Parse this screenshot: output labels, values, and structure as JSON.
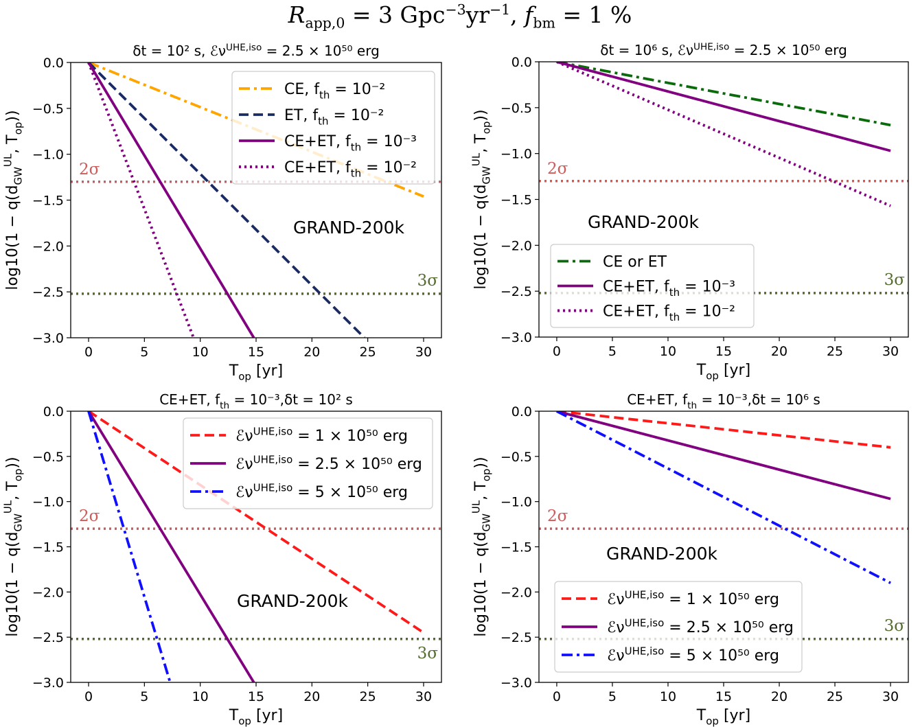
{
  "suptitle": "R_app,0 = 3 Gpc⁻³yr⁻¹, f_bm = 1 %",
  "colors": {
    "orange": "#ffa500",
    "navy": "#1a2a63",
    "purple": "#800080",
    "green": "#0a6b0a",
    "red": "#ff1a1a",
    "blue": "#1010ff",
    "sigma2": "#cd5c5c",
    "sigma3": "#556b2f"
  },
  "chart_data": [
    {
      "type": "line",
      "title": "δt = 10² s, ℰν^UHE,iso = 2.5 × 10⁵⁰ erg",
      "xlabel": "T_op [yr]",
      "ylabel": "log10(1 − q(d_GW^UL, T_op))",
      "xlim": [
        -1.6,
        31.6
      ],
      "ylim": [
        -3.0,
        0.0
      ],
      "xticks": [
        0,
        5,
        10,
        15,
        20,
        25,
        30
      ],
      "yticks": [
        0.0,
        -0.5,
        -1.0,
        -1.5,
        -2.0,
        -2.5,
        -3.0
      ],
      "annotation": "GRAND-200k",
      "legend_position": "top-right",
      "sigma_lines": [
        {
          "label": "2σ",
          "y": -1.3,
          "label_side": "left-above"
        },
        {
          "label": "3σ",
          "y": -2.52,
          "label_side": "right-above"
        }
      ],
      "series": [
        {
          "name": "CE, f_th = 10⁻²",
          "style": "dashdot",
          "color": "orange",
          "x": [
            0,
            30
          ],
          "y": [
            0,
            -1.46
          ]
        },
        {
          "name": "ET, f_th = 10⁻²",
          "style": "dashed",
          "color": "navy",
          "x": [
            0,
            24.7
          ],
          "y": [
            0,
            -3.0
          ]
        },
        {
          "name": "CE+ET, f_th = 10⁻³",
          "style": "solid",
          "color": "purple",
          "x": [
            0,
            14.8
          ],
          "y": [
            0,
            -3.0
          ]
        },
        {
          "name": "CE+ET, f_th = 10⁻²",
          "style": "dotted",
          "color": "purple",
          "x": [
            0,
            9.4
          ],
          "y": [
            0,
            -3.0
          ]
        }
      ]
    },
    {
      "type": "line",
      "title": "δt = 10⁶ s, ℰν^UHE,iso = 2.5 × 10⁵⁰ erg",
      "xlabel": "T_op [yr]",
      "ylabel": "log10(1 − q(d_GW^UL, T_op))",
      "xlim": [
        -1.6,
        31.6
      ],
      "ylim": [
        -3.0,
        0.0
      ],
      "xticks": [
        0,
        5,
        10,
        15,
        20,
        25,
        30
      ],
      "yticks": [
        0.0,
        -0.5,
        -1.0,
        -1.5,
        -2.0,
        -2.5,
        -3.0
      ],
      "annotation": "GRAND-200k",
      "legend_position": "bottom-left",
      "sigma_lines": [
        {
          "label": "2σ",
          "y": -1.3,
          "label_side": "left-above"
        },
        {
          "label": "3σ",
          "y": -2.52,
          "label_side": "right-above"
        }
      ],
      "series": [
        {
          "name": "CE or ET",
          "style": "dashdot",
          "color": "green",
          "x": [
            0,
            30
          ],
          "y": [
            0,
            -0.69
          ]
        },
        {
          "name": "CE+ET, f_th = 10⁻³",
          "style": "solid",
          "color": "purple",
          "x": [
            0,
            30
          ],
          "y": [
            0,
            -0.97
          ]
        },
        {
          "name": "CE+ET, f_th = 10⁻²",
          "style": "dotted",
          "color": "purple",
          "x": [
            0,
            30
          ],
          "y": [
            0,
            -1.57
          ]
        }
      ]
    },
    {
      "type": "line",
      "title": "CE+ET, f_th = 10⁻³,δt = 10² s",
      "xlabel": "T_op [yr]",
      "ylabel": "log10(1 − q(d_GW^UL, T_op))",
      "xlim": [
        -1.6,
        31.6
      ],
      "ylim": [
        -3.0,
        0.0
      ],
      "xticks": [
        0,
        5,
        10,
        15,
        20,
        25,
        30
      ],
      "yticks": [
        0.0,
        -0.5,
        -1.0,
        -1.5,
        -2.0,
        -2.5,
        -3.0
      ],
      "annotation": "GRAND-200k",
      "legend_position": "top-right",
      "sigma_lines": [
        {
          "label": "2σ",
          "y": -1.3,
          "label_side": "left-above"
        },
        {
          "label": "3σ",
          "y": -2.52,
          "label_side": "right-below"
        }
      ],
      "series": [
        {
          "name": "ℰν^UHE,iso = 1 × 10⁵⁰ erg",
          "style": "dashed",
          "color": "red",
          "x": [
            0,
            30
          ],
          "y": [
            0,
            -2.45
          ]
        },
        {
          "name": "ℰν^UHE,iso = 2.5 × 10⁵⁰ erg",
          "style": "solid",
          "color": "purple",
          "x": [
            0,
            14.8
          ],
          "y": [
            0,
            -3.0
          ]
        },
        {
          "name": "ℰν^UHE,iso = 5 × 10⁵⁰ erg",
          "style": "dashdot",
          "color": "blue",
          "x": [
            0,
            7.3
          ],
          "y": [
            0,
            -3.0
          ]
        }
      ]
    },
    {
      "type": "line",
      "title": "CE+ET, f_th = 10⁻³,δt = 10⁶ s",
      "xlabel": "T_op [yr]",
      "ylabel": "log10(1 − q(d_GW^UL, T_op))",
      "xlim": [
        -1.6,
        31.6
      ],
      "ylim": [
        -3.0,
        0.0
      ],
      "xticks": [
        0,
        5,
        10,
        15,
        20,
        25,
        30
      ],
      "yticks": [
        0.0,
        -0.5,
        -1.0,
        -1.5,
        -2.0,
        -2.5,
        -3.0
      ],
      "annotation": "GRAND-200k",
      "legend_position": "bottom-left",
      "sigma_lines": [
        {
          "label": "2σ",
          "y": -1.3,
          "label_side": "left-above"
        },
        {
          "label": "3σ",
          "y": -2.52,
          "label_side": "right-above"
        }
      ],
      "series": [
        {
          "name": "ℰν^UHE,iso = 1 × 10⁵⁰ erg",
          "style": "dashed",
          "color": "red",
          "x": [
            0,
            30
          ],
          "y": [
            0,
            -0.4
          ]
        },
        {
          "name": "ℰν^UHE,iso = 2.5 × 10⁵⁰ erg",
          "style": "solid",
          "color": "purple",
          "x": [
            0,
            30
          ],
          "y": [
            0,
            -0.97
          ]
        },
        {
          "name": "ℰν^UHE,iso = 5 × 10⁵⁰ erg",
          "style": "dashdot",
          "color": "blue",
          "x": [
            0,
            30
          ],
          "y": [
            0,
            -1.9
          ]
        }
      ]
    }
  ]
}
